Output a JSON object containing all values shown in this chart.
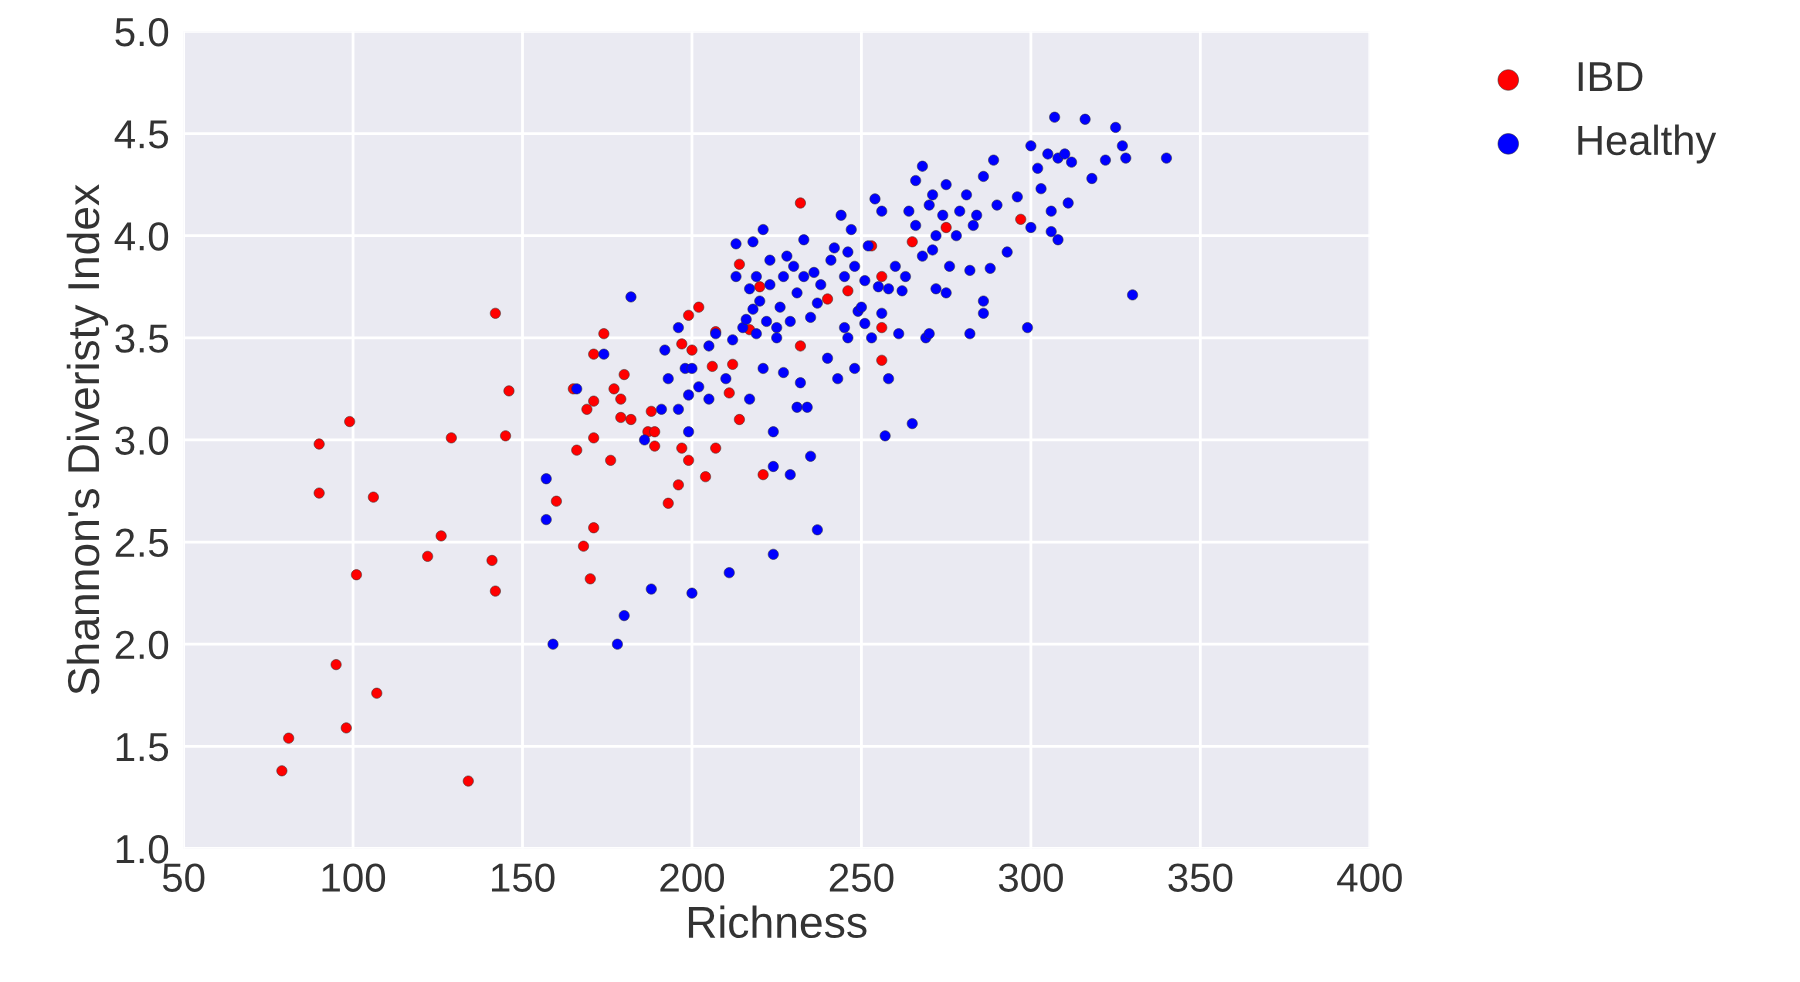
{
  "chart_data": {
    "type": "scatter",
    "xlabel": "Richness",
    "ylabel": "Shannon's Diveristy Index",
    "xlim": [
      50,
      400
    ],
    "xticks": [
      50,
      100,
      150,
      200,
      250,
      300,
      350,
      400
    ],
    "ylim": [
      1.0,
      5.0
    ],
    "yticks": [
      {
        "value": 1.0,
        "label": "1.0"
      },
      {
        "value": 1.5,
        "label": "1.5"
      },
      {
        "value": 2.0,
        "label": "2.0"
      },
      {
        "value": 2.5,
        "label": "2.5"
      },
      {
        "value": 3.0,
        "label": "3.0"
      },
      {
        "value": 3.5,
        "label": "3.5"
      },
      {
        "value": 4.0,
        "label": "4.0"
      },
      {
        "value": 4.5,
        "label": "4.5"
      },
      {
        "value": 5.0,
        "label": "5.0"
      }
    ],
    "grid": true,
    "legend": "top right",
    "marker": "circle",
    "series": [
      {
        "name": "IBD",
        "color": "#ff0000",
        "x": [
          79,
          81,
          90,
          90,
          95,
          98,
          99,
          101,
          106,
          107,
          122,
          126,
          129,
          134,
          141,
          142,
          142,
          145,
          146,
          160,
          165,
          166,
          168,
          169,
          170,
          171,
          171,
          171,
          171,
          174,
          176,
          177,
          179,
          179,
          180,
          182,
          187,
          188,
          189,
          189,
          193,
          196,
          197,
          197,
          199,
          199,
          200,
          202,
          204,
          206,
          207,
          207,
          211,
          212,
          214,
          214,
          217,
          220,
          221,
          232,
          232,
          240,
          246,
          253,
          256,
          256,
          256,
          265,
          275,
          297
        ],
        "values": [
          1.38,
          1.54,
          2.98,
          2.74,
          1.9,
          1.59,
          3.09,
          2.34,
          2.72,
          1.76,
          2.43,
          2.53,
          3.01,
          1.33,
          2.41,
          3.62,
          2.26,
          3.02,
          3.24,
          2.7,
          3.25,
          2.95,
          2.48,
          3.15,
          2.32,
          3.01,
          2.57,
          3.19,
          3.42,
          3.52,
          2.9,
          3.25,
          3.11,
          3.2,
          3.32,
          3.1,
          3.04,
          3.14,
          2.97,
          3.04,
          2.69,
          2.78,
          3.47,
          2.96,
          3.61,
          2.9,
          3.44,
          3.65,
          2.82,
          3.36,
          3.53,
          2.96,
          3.23,
          3.37,
          3.1,
          3.86,
          3.54,
          3.75,
          2.83,
          4.16,
          3.46,
          3.69,
          3.73,
          3.95,
          3.8,
          3.55,
          3.39,
          3.97,
          4.04,
          4.08
        ]
      },
      {
        "name": "Healthy",
        "color": "#0000ff",
        "x": [
          157,
          157,
          159,
          166,
          174,
          178,
          180,
          182,
          186,
          188,
          191,
          192,
          193,
          196,
          196,
          198,
          199,
          199,
          200,
          200,
          202,
          205,
          205,
          207,
          210,
          211,
          212,
          213,
          213,
          215,
          216,
          217,
          217,
          218,
          218,
          219,
          219,
          220,
          221,
          221,
          222,
          223,
          223,
          224,
          224,
          224,
          225,
          225,
          226,
          227,
          227,
          228,
          229,
          229,
          230,
          231,
          231,
          232,
          233,
          233,
          234,
          235,
          235,
          236,
          237,
          237,
          238,
          240,
          241,
          242,
          243,
          244,
          245,
          245,
          246,
          246,
          247,
          248,
          248,
          249,
          250,
          251,
          251,
          252,
          253,
          254,
          255,
          256,
          256,
          257,
          258,
          258,
          260,
          261,
          262,
          263,
          264,
          265,
          266,
          266,
          268,
          268,
          269,
          270,
          270,
          271,
          271,
          272,
          272,
          274,
          275,
          275,
          276,
          278,
          279,
          281,
          282,
          282,
          283,
          284,
          286,
          286,
          286,
          288,
          289,
          290,
          293,
          296,
          299,
          300,
          300,
          302,
          303,
          305,
          306,
          306,
          307,
          308,
          308,
          310,
          311,
          312,
          316,
          318,
          322,
          325,
          327,
          328,
          330,
          340
        ],
        "values": [
          2.81,
          2.61,
          2.0,
          3.25,
          3.42,
          2.0,
          2.14,
          3.7,
          3.0,
          2.27,
          3.15,
          3.44,
          3.3,
          3.55,
          3.15,
          3.35,
          3.22,
          3.04,
          2.25,
          3.35,
          3.26,
          3.2,
          3.46,
          3.52,
          3.3,
          2.35,
          3.49,
          3.96,
          3.8,
          3.55,
          3.59,
          3.2,
          3.74,
          3.97,
          3.64,
          3.52,
          3.8,
          3.68,
          3.35,
          4.03,
          3.58,
          3.76,
          3.88,
          2.87,
          3.04,
          2.44,
          3.55,
          3.5,
          3.65,
          3.33,
          3.8,
          3.9,
          3.58,
          2.83,
          3.85,
          3.16,
          3.72,
          3.28,
          3.8,
          3.98,
          3.16,
          2.92,
          3.6,
          3.82,
          2.56,
          3.67,
          3.76,
          3.4,
          3.88,
          3.94,
          3.3,
          4.1,
          3.8,
          3.55,
          3.5,
          3.92,
          4.03,
          3.35,
          3.85,
          3.63,
          3.65,
          3.78,
          3.57,
          3.95,
          3.5,
          4.18,
          3.75,
          3.62,
          4.12,
          3.02,
          3.3,
          3.74,
          3.85,
          3.52,
          3.73,
          3.8,
          4.12,
          3.08,
          4.05,
          4.27,
          4.34,
          3.9,
          3.5,
          4.15,
          3.52,
          4.2,
          3.93,
          4.0,
          3.74,
          4.1,
          3.72,
          4.25,
          3.85,
          4.0,
          4.12,
          4.2,
          3.52,
          3.83,
          4.05,
          4.1,
          3.62,
          3.68,
          4.29,
          3.84,
          4.37,
          4.15,
          3.92,
          4.19,
          3.55,
          4.44,
          4.04,
          4.33,
          4.23,
          4.4,
          4.12,
          4.02,
          4.58,
          4.38,
          3.98,
          4.4,
          4.16,
          4.36,
          4.57,
          4.28,
          4.37,
          4.53,
          4.44,
          4.38,
          3.71,
          4.38
        ]
      }
    ]
  }
}
